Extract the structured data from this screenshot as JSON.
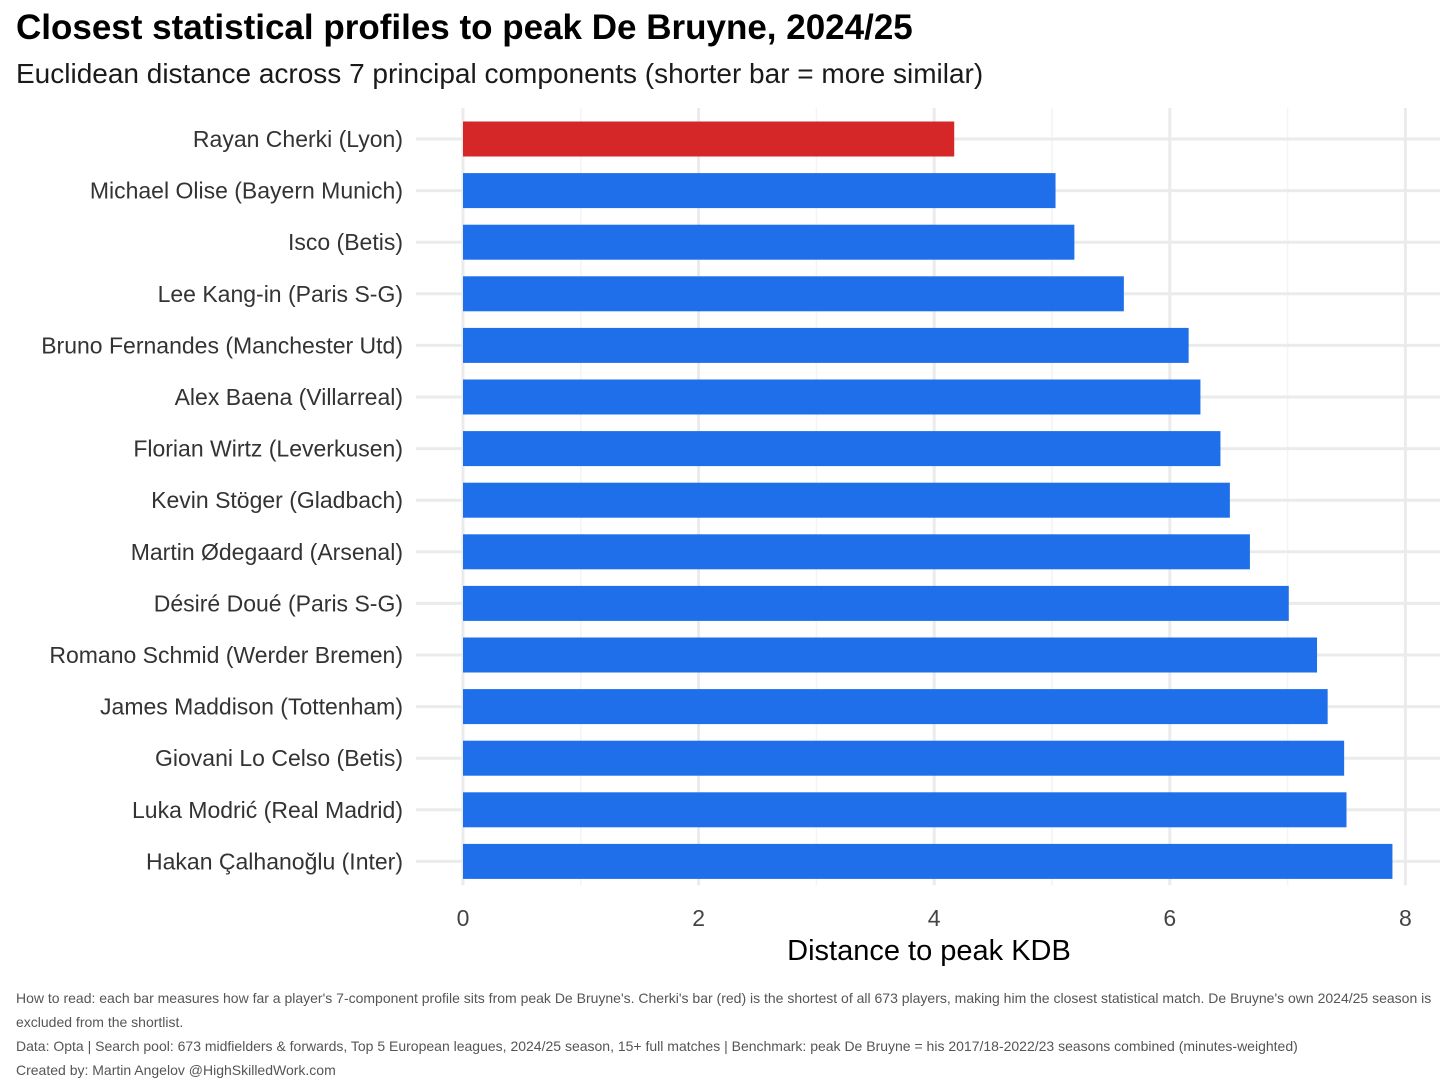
{
  "title": "Closest statistical profiles to peak De Bruyne, 2024/25",
  "subtitle": "Euclidean distance across 7 principal components (shorter bar = more similar)",
  "notes": {
    "how_to_read": "How to read: each bar measures how far a player's 7-component profile sits from peak De Bruyne's. Cherki's bar (red) is the shortest of all 673 players, making him the closest statistical match. De Bruyne's own 2024/25 season is excluded from the shortlist.",
    "data": "Data: Opta | Search pool: 673 midfielders & forwards, Top 5 European leagues, 2024/25 season, 15+ full matches | Benchmark: peak De Bruyne = his 2017/18-2022/23 seasons combined (minutes-weighted)",
    "created_by": "Created by: Martin Angelov @HighSkilledWork.com"
  },
  "colors": {
    "highlight": "#d62728",
    "default_bar": "#1f6feb",
    "grid": "#ebebeb"
  },
  "chart_data": {
    "type": "bar",
    "orientation": "horizontal",
    "title": "Closest statistical profiles to peak De Bruyne, 2024/25",
    "subtitle": "Euclidean distance across 7 principal components (shorter bar = more similar)",
    "xlabel": "Distance to peak KDB",
    "ylabel": "",
    "xlim": [
      0,
      8
    ],
    "xticks": [
      0,
      2,
      4,
      6,
      8
    ],
    "grid": true,
    "categories": [
      "Rayan Cherki  (Lyon)",
      "Michael Olise  (Bayern Munich)",
      "Isco  (Betis)",
      "Lee Kang-in  (Paris S-G)",
      "Bruno Fernandes  (Manchester Utd)",
      "Alex Baena  (Villarreal)",
      "Florian Wirtz  (Leverkusen)",
      "Kevin Stöger  (Gladbach)",
      "Martin Ødegaard  (Arsenal)",
      "Désiré Doué  (Paris S-G)",
      "Romano Schmid  (Werder Bremen)",
      "James Maddison  (Tottenham)",
      "Giovani Lo Celso  (Betis)",
      "Luka Modrić  (Real Madrid)",
      "Hakan Çalhanoğlu  (Inter)"
    ],
    "values": [
      4.17,
      5.03,
      5.19,
      5.61,
      6.16,
      6.26,
      6.43,
      6.51,
      6.68,
      7.01,
      7.25,
      7.34,
      7.48,
      7.5,
      7.89
    ],
    "highlight_index": 0
  }
}
